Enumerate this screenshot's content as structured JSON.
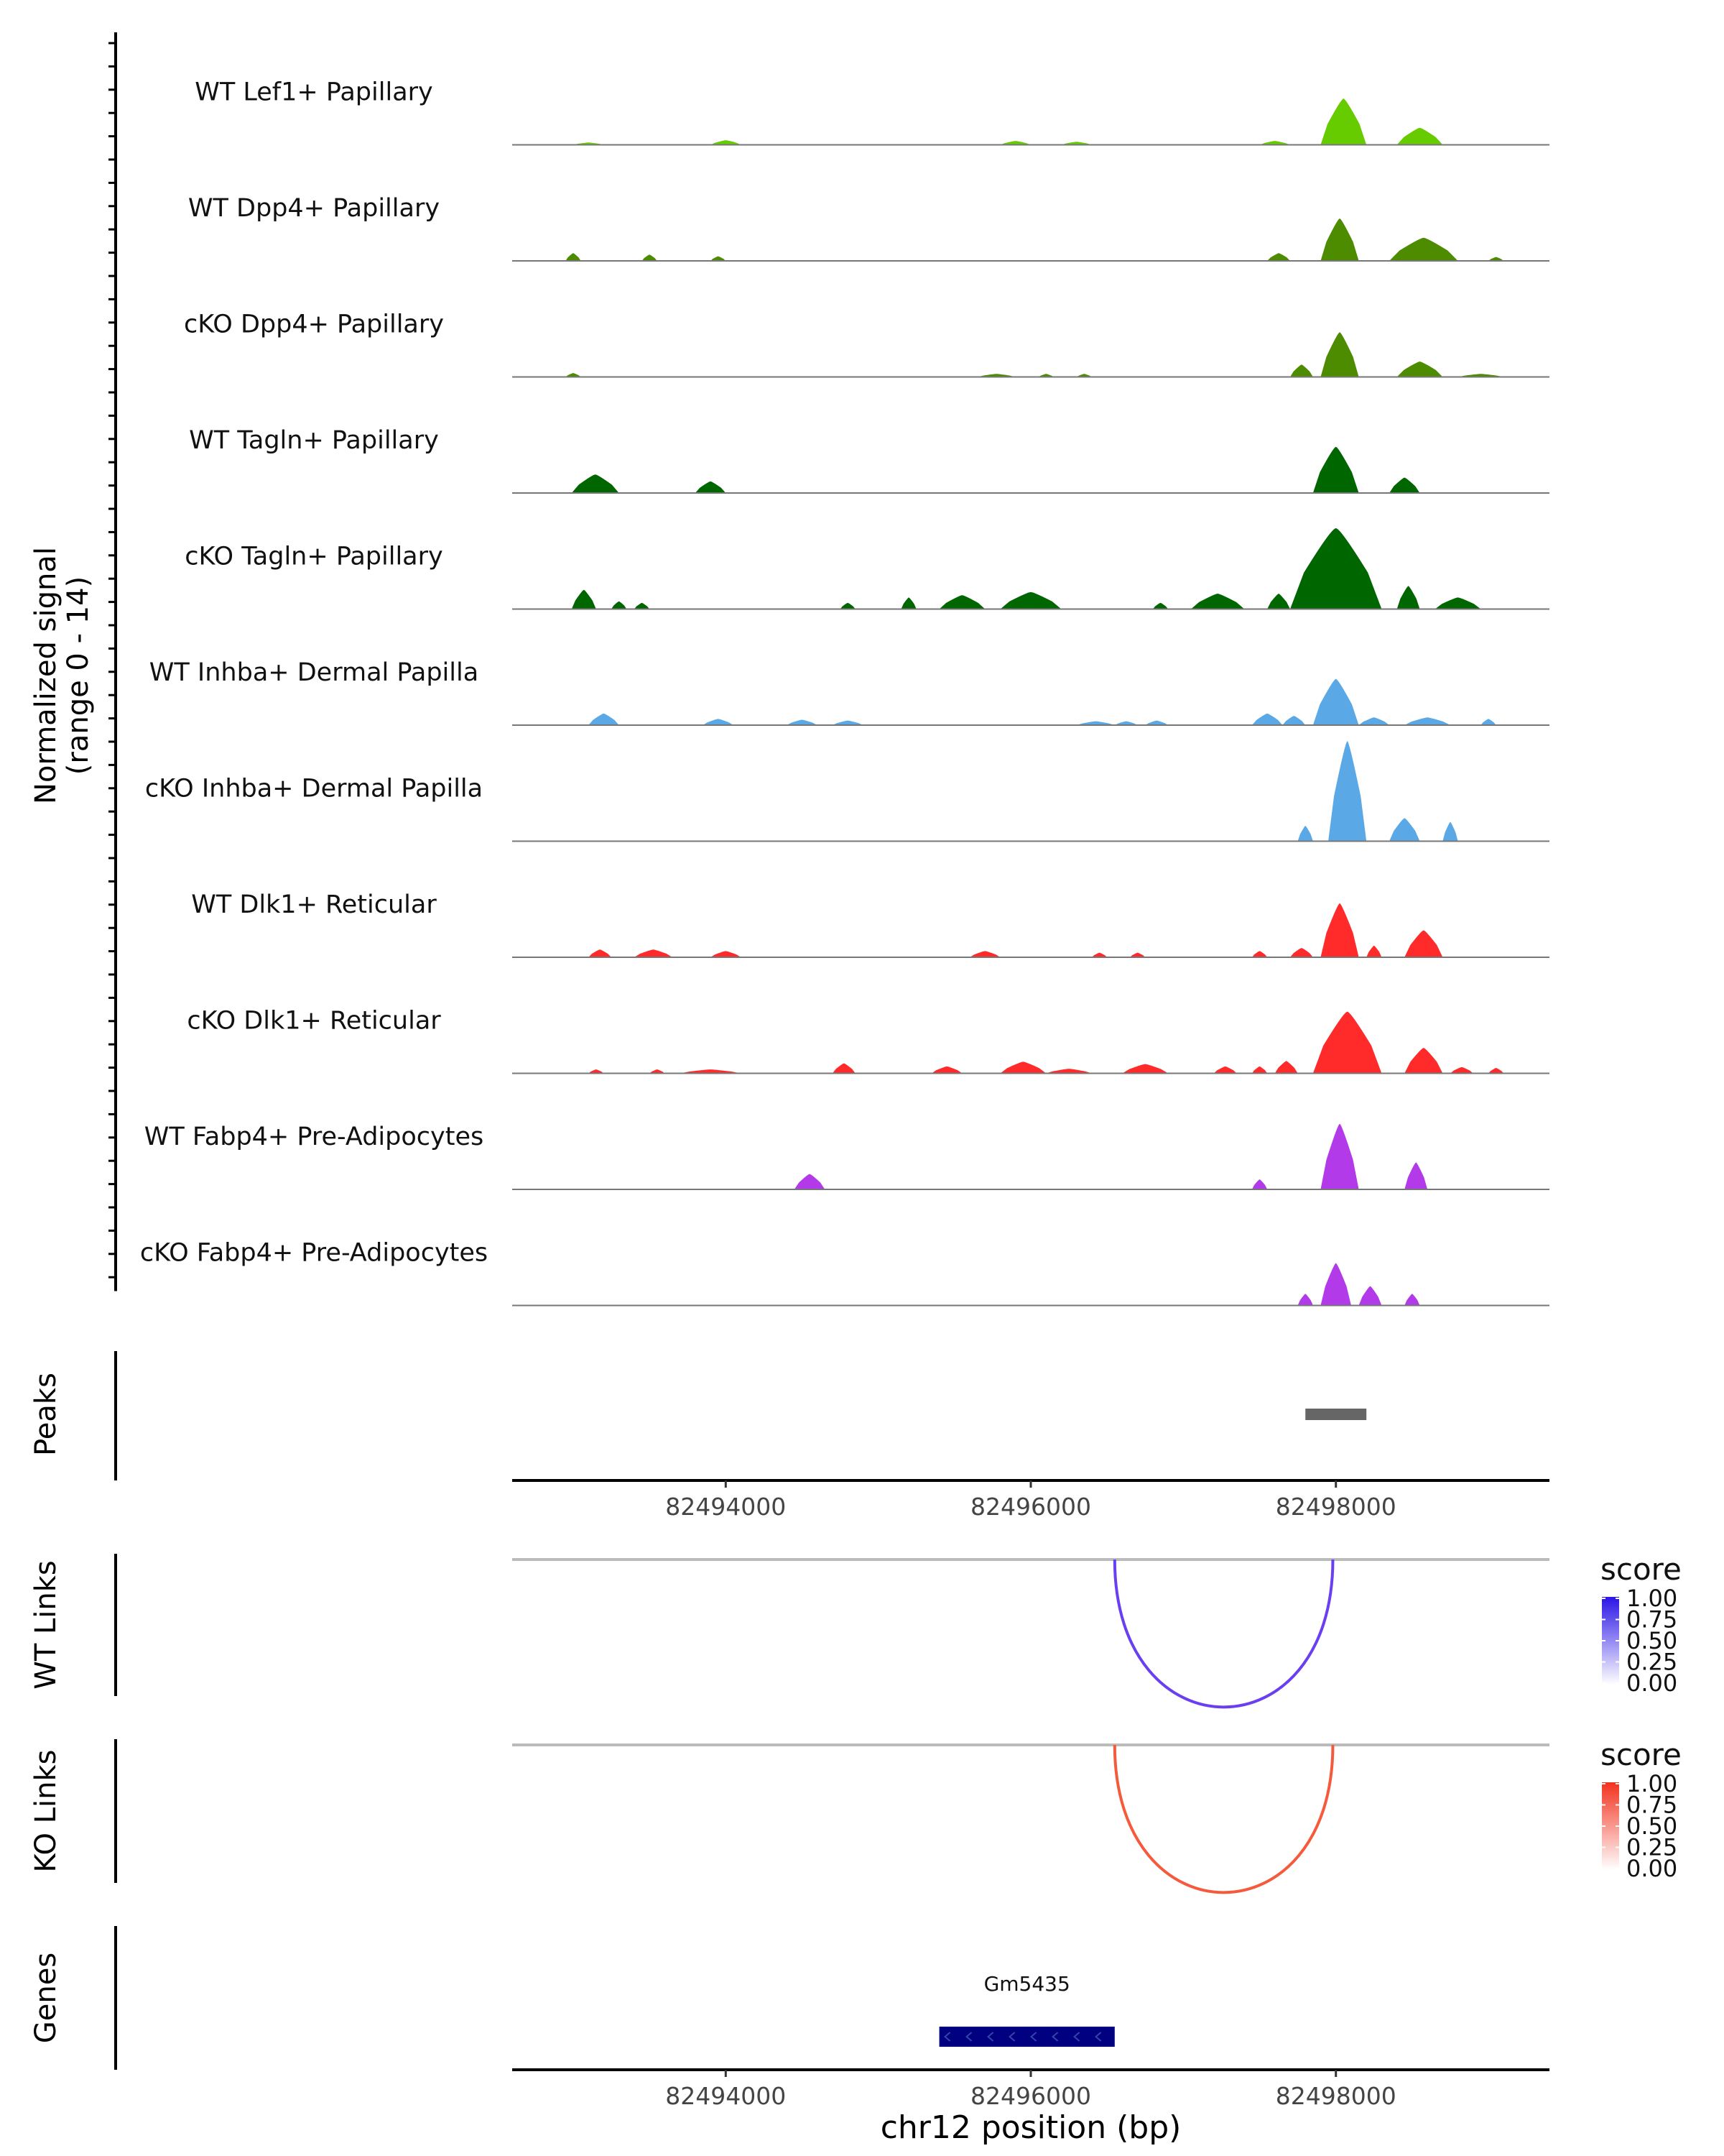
{
  "chart_data": {
    "type": "area",
    "region": "chr12:82492600-82499400",
    "x_axis": {
      "label": "chr12 position (bp)",
      "ticks": [
        82494000,
        82496000,
        82498000
      ],
      "tick_labels": [
        "82494000",
        "82496000",
        "82498000"
      ],
      "xlim": [
        82492600,
        82499400
      ]
    },
    "coverage": {
      "ylabel_line1": "Normalized signal",
      "ylabel_line2": "(range 0 - 14)",
      "ylim": [
        0,
        14
      ],
      "tracks": [
        {
          "name": "WT Lef1+ Papillary",
          "color": "#66cc00",
          "peaks": [
            [
              82493000,
              82493200,
              0.3
            ],
            [
              82493900,
              82494100,
              0.6
            ],
            [
              82495800,
              82496000,
              0.5
            ],
            [
              82496200,
              82496400,
              0.4
            ],
            [
              82497500,
              82497700,
              0.5
            ],
            [
              82497900,
              82498200,
              6
            ],
            [
              82498400,
              82498700,
              2.2
            ]
          ]
        },
        {
          "name": "WT Dpp4+ Papillary",
          "color": "#4d8c00",
          "peaks": [
            [
              82492950,
              82493050,
              1
            ],
            [
              82493450,
              82493550,
              0.8
            ],
            [
              82493900,
              82494000,
              0.6
            ],
            [
              82497550,
              82497700,
              1
            ],
            [
              82497900,
              82498150,
              5.5
            ],
            [
              82498350,
              82498800,
              3
            ],
            [
              82499000,
              82499100,
              0.5
            ]
          ]
        },
        {
          "name": "cKO Dpp4+ Papillary",
          "color": "#4d8c00",
          "peaks": [
            [
              82492950,
              82493050,
              0.5
            ],
            [
              82495650,
              82495900,
              0.4
            ],
            [
              82496050,
              82496150,
              0.4
            ],
            [
              82496300,
              82496400,
              0.4
            ],
            [
              82497700,
              82497850,
              1.6
            ],
            [
              82497900,
              82498150,
              5.8
            ],
            [
              82498400,
              82498700,
              2
            ],
            [
              82498800,
              82499100,
              0.4
            ]
          ]
        },
        {
          "name": "WT Tagln+ Papillary",
          "color": "#006600",
          "peaks": [
            [
              82492990,
              82493300,
              2.4
            ],
            [
              82493800,
              82494000,
              1.5
            ],
            [
              82497850,
              82498150,
              6
            ],
            [
              82498350,
              82498550,
              2
            ]
          ]
        },
        {
          "name": "cKO Tagln+ Papillary",
          "color": "#006600",
          "peaks": [
            [
              82492990,
              82493150,
              2.5
            ],
            [
              82493250,
              82493350,
              1
            ],
            [
              82493400,
              82493500,
              0.8
            ],
            [
              82494750,
              82494850,
              0.8
            ],
            [
              82495150,
              82495250,
              1.5
            ],
            [
              82495400,
              82495700,
              1.8
            ],
            [
              82495800,
              82496200,
              2.2
            ],
            [
              82496800,
              82496900,
              0.8
            ],
            [
              82497050,
              82497400,
              2
            ],
            [
              82497550,
              82497700,
              2
            ],
            [
              82497700,
              82498300,
              10.5
            ],
            [
              82498400,
              82498550,
              3
            ],
            [
              82498650,
              82498950,
              1.5
            ]
          ]
        },
        {
          "name": "WT Inhba+ Dermal Papilla",
          "color": "#5aa9e6",
          "peaks": [
            [
              82493100,
              82493300,
              1.5
            ],
            [
              82493850,
              82494050,
              0.8
            ],
            [
              82494400,
              82494600,
              0.7
            ],
            [
              82494700,
              82494900,
              0.6
            ],
            [
              82496300,
              82496550,
              0.5
            ],
            [
              82496550,
              82496700,
              0.5
            ],
            [
              82496750,
              82496900,
              0.6
            ],
            [
              82497450,
              82497650,
              1.5
            ],
            [
              82497650,
              82497800,
              1.2
            ],
            [
              82497850,
              82498150,
              6
            ],
            [
              82498150,
              82498350,
              1
            ],
            [
              82498450,
              82498750,
              1
            ],
            [
              82498950,
              82499050,
              0.8
            ]
          ]
        },
        {
          "name": "cKO Inhba+ Dermal Papilla",
          "color": "#5aa9e6",
          "peaks": [
            [
              82497750,
              82497850,
              2
            ],
            [
              82497950,
              82498200,
              13
            ],
            [
              82498350,
              82498550,
              3
            ],
            [
              82498700,
              82498800,
              2.5
            ]
          ]
        },
        {
          "name": "WT Dlk1+ Reticular",
          "color": "#ff2a2a",
          "peaks": [
            [
              82493100,
              82493250,
              1
            ],
            [
              82493400,
              82493650,
              1
            ],
            [
              82493900,
              82494100,
              0.8
            ],
            [
              82495600,
              82495800,
              0.8
            ],
            [
              82496400,
              82496500,
              0.6
            ],
            [
              82496650,
              82496750,
              0.6
            ],
            [
              82497450,
              82497550,
              0.8
            ],
            [
              82497700,
              82497850,
              1.2
            ],
            [
              82497900,
              82498150,
              7
            ],
            [
              82498200,
              82498300,
              1.5
            ],
            [
              82498450,
              82498700,
              3.5
            ]
          ]
        },
        {
          "name": "cKO Dlk1+ Reticular",
          "color": "#ff2a2a",
          "peaks": [
            [
              82493100,
              82493200,
              0.5
            ],
            [
              82493500,
              82493600,
              0.5
            ],
            [
              82493700,
              82494100,
              0.5
            ],
            [
              82494700,
              82494850,
              1.3
            ],
            [
              82495350,
              82495550,
              0.9
            ],
            [
              82495800,
              82496100,
              1.5
            ],
            [
              82496100,
              82496400,
              0.6
            ],
            [
              82496600,
              82496900,
              1.2
            ],
            [
              82497200,
              82497350,
              0.9
            ],
            [
              82497450,
              82497550,
              0.9
            ],
            [
              82497600,
              82497750,
              1.6
            ],
            [
              82497850,
              82498300,
              8
            ],
            [
              82498450,
              82498700,
              3.3
            ],
            [
              82498750,
              82498900,
              0.8
            ],
            [
              82499000,
              82499100,
              0.7
            ]
          ]
        },
        {
          "name": "WT Fabp4+ Pre-Adipocytes",
          "color": "#b23ae8",
          "peaks": [
            [
              82494450,
              82494650,
              2
            ],
            [
              82497450,
              82497550,
              1.3
            ],
            [
              82497900,
              82498150,
              8.5
            ],
            [
              82498450,
              82498600,
              3.5
            ]
          ]
        },
        {
          "name": "cKO Fabp4+ Pre-Adipocytes",
          "color": "#b23ae8",
          "peaks": [
            [
              82497750,
              82497850,
              1.5
            ],
            [
              82497900,
              82498100,
              5.5
            ],
            [
              82498150,
              82498300,
              2.5
            ],
            [
              82498450,
              82498550,
              1.5
            ]
          ]
        }
      ]
    },
    "peaks_track": {
      "label": "Peaks",
      "regions": [
        [
          82497800,
          82498200
        ]
      ],
      "color": "#666666"
    },
    "links": [
      {
        "label": "WT Links",
        "from": 82496550,
        "to": 82497980,
        "score": 0.75,
        "color": "#6a3ff2",
        "legend_title": "score",
        "legend_high": "#2a14e6",
        "legend_ticks": [
          "1.00",
          "0.75",
          "0.50",
          "0.25",
          "0.00"
        ]
      },
      {
        "label": "KO Links",
        "from": 82496550,
        "to": 82497980,
        "score": 0.75,
        "color": "#f55a3c",
        "legend_title": "score",
        "legend_high": "#f2321e",
        "legend_ticks": [
          "1.00",
          "0.75",
          "0.50",
          "0.25",
          "0.00"
        ]
      }
    ],
    "genes": {
      "label": "Genes",
      "items": [
        {
          "name": "Gm5435",
          "start": 82495400,
          "end": 82496550,
          "color": "#000080"
        }
      ]
    }
  }
}
